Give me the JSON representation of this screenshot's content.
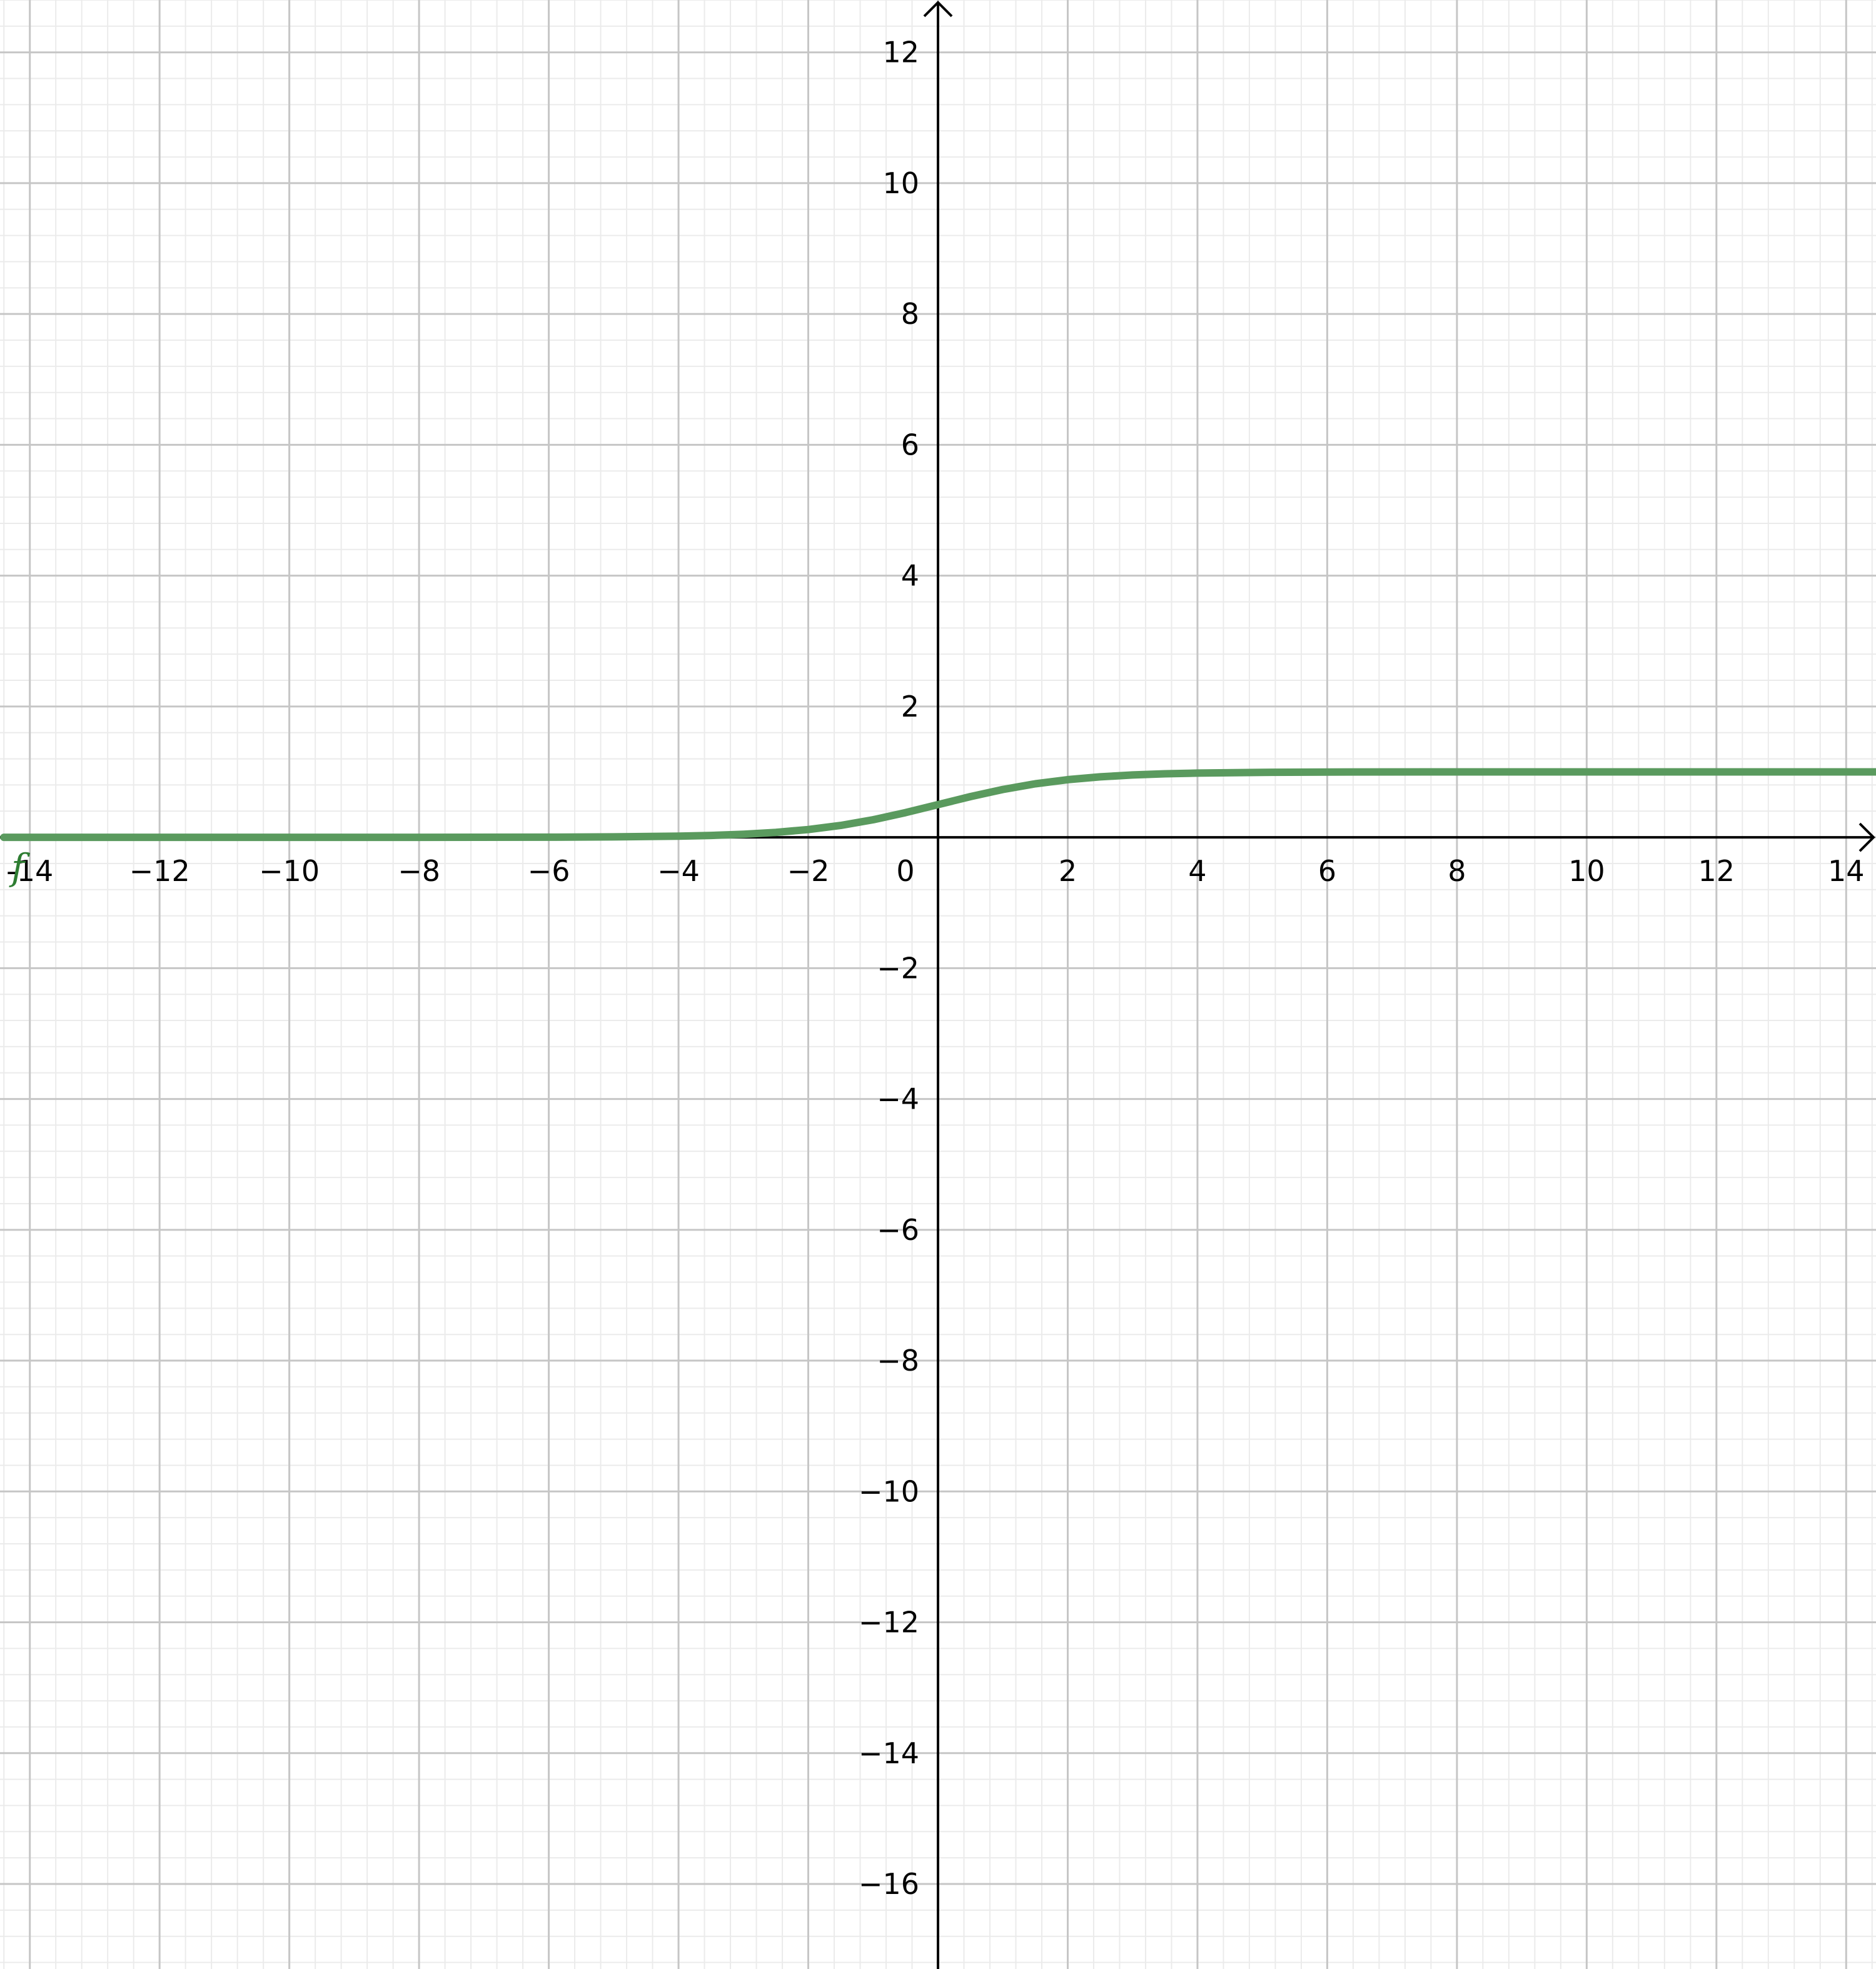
{
  "chart_data": {
    "type": "line",
    "title": "",
    "xlabel": "",
    "ylabel": "",
    "xlim": [
      -14.46,
      14.46
    ],
    "ylim": [
      -17.3,
      12.8
    ],
    "grid": true,
    "minor_grid_step": 0.4,
    "major_grid_step": 2,
    "x_ticks": [
      -14,
      -12,
      -10,
      -8,
      -6,
      -4,
      -2,
      0,
      2,
      4,
      6,
      8,
      10,
      12,
      14
    ],
    "x_tick_labels": [
      "-14",
      "−12",
      "−10",
      "−8",
      "−6",
      "−4",
      "−2",
      "0",
      "2",
      "4",
      "6",
      "8",
      "10",
      "12",
      "14"
    ],
    "y_ticks": [
      12,
      10,
      8,
      6,
      4,
      2,
      -2,
      -4,
      -6,
      -8,
      -10,
      -12,
      -14,
      -16
    ],
    "y_tick_labels": [
      "12",
      "10",
      "8",
      "6",
      "4",
      "2",
      "−2",
      "−4",
      "−6",
      "−8",
      "−10",
      "−12",
      "−14",
      "−16"
    ],
    "series": [
      {
        "name": "f",
        "color": "#5a9a5e",
        "label_color": "#2e7d32",
        "x": [
          -14.4,
          -12,
          -10,
          -8,
          -6,
          -5,
          -4,
          -3.5,
          -3,
          -2.5,
          -2,
          -1.5,
          -1,
          -0.5,
          0,
          0.5,
          1,
          1.5,
          2,
          2.5,
          3,
          3.5,
          4,
          5,
          6,
          8,
          10,
          12,
          14.46
        ],
        "y": [
          0.0,
          0.0,
          0.0,
          0.0,
          0.002,
          0.007,
          0.018,
          0.029,
          0.047,
          0.076,
          0.119,
          0.182,
          0.269,
          0.378,
          0.5,
          0.622,
          0.731,
          0.818,
          0.881,
          0.924,
          0.953,
          0.971,
          0.982,
          0.993,
          0.998,
          1.0,
          1.0,
          1.0,
          1.0
        ]
      }
    ]
  },
  "colors": {
    "minor_grid": "#ebebeb",
    "major_grid": "#c6c6c6",
    "axis": "#000000"
  }
}
